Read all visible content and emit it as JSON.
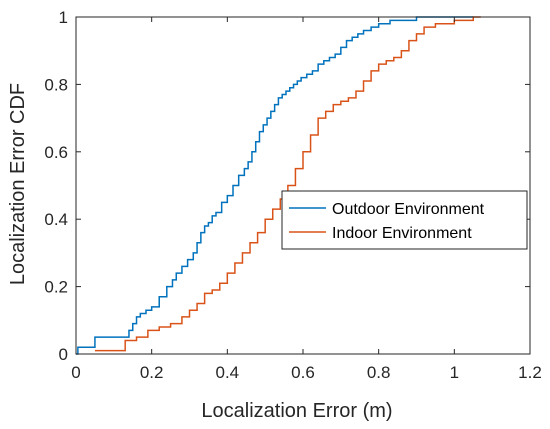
{
  "chart_data": {
    "type": "line",
    "step": true,
    "title": "",
    "xlabel": "Localization Error (m)",
    "ylabel": "Localization Error CDF",
    "xlim": [
      0,
      1.2
    ],
    "ylim": [
      0,
      1
    ],
    "x_ticks": [
      0,
      0.2,
      0.4,
      0.6,
      0.8,
      1,
      1.2
    ],
    "x_tick_labels": [
      "0",
      "0.2",
      "0.4",
      "0.6",
      "0.8",
      "1",
      "1.2"
    ],
    "y_ticks": [
      0,
      0.2,
      0.4,
      0.6,
      0.8,
      1
    ],
    "y_tick_labels": [
      "0",
      "0.2",
      "0.4",
      "0.6",
      "0.8",
      "1"
    ],
    "grid": false,
    "legend_position": "center-right",
    "series": [
      {
        "name": "Outdoor Environment",
        "color": "#0072BD",
        "x": [
          0,
          0.005,
          0.05,
          0.14,
          0.15,
          0.16,
          0.17,
          0.185,
          0.2,
          0.22,
          0.24,
          0.255,
          0.265,
          0.28,
          0.295,
          0.31,
          0.32,
          0.33,
          0.34,
          0.35,
          0.36,
          0.37,
          0.385,
          0.4,
          0.415,
          0.43,
          0.445,
          0.455,
          0.465,
          0.475,
          0.485,
          0.495,
          0.505,
          0.515,
          0.525,
          0.535,
          0.545,
          0.555,
          0.565,
          0.575,
          0.585,
          0.595,
          0.61,
          0.625,
          0.64,
          0.655,
          0.67,
          0.685,
          0.7,
          0.715,
          0.73,
          0.745,
          0.76,
          0.78,
          0.8,
          0.83,
          0.86,
          0.9,
          0.95,
          1.0,
          1.05
        ],
        "y": [
          0,
          0.02,
          0.05,
          0.07,
          0.09,
          0.11,
          0.12,
          0.13,
          0.14,
          0.17,
          0.2,
          0.22,
          0.24,
          0.26,
          0.28,
          0.3,
          0.33,
          0.36,
          0.38,
          0.39,
          0.41,
          0.42,
          0.45,
          0.47,
          0.5,
          0.53,
          0.55,
          0.57,
          0.6,
          0.63,
          0.66,
          0.68,
          0.7,
          0.72,
          0.74,
          0.76,
          0.77,
          0.78,
          0.79,
          0.8,
          0.81,
          0.82,
          0.83,
          0.84,
          0.86,
          0.87,
          0.88,
          0.89,
          0.91,
          0.93,
          0.94,
          0.95,
          0.96,
          0.97,
          0.98,
          0.99,
          0.99,
          1.0,
          1.0,
          1.0,
          1.0
        ]
      },
      {
        "name": "Indoor Environment",
        "color": "#D95319",
        "x": [
          0.05,
          0.13,
          0.16,
          0.19,
          0.22,
          0.25,
          0.28,
          0.3,
          0.32,
          0.34,
          0.36,
          0.38,
          0.4,
          0.42,
          0.44,
          0.46,
          0.48,
          0.5,
          0.52,
          0.54,
          0.56,
          0.58,
          0.6,
          0.62,
          0.64,
          0.66,
          0.68,
          0.7,
          0.72,
          0.74,
          0.76,
          0.78,
          0.8,
          0.82,
          0.84,
          0.86,
          0.88,
          0.9,
          0.92,
          0.95,
          1.0,
          1.05,
          1.07
        ],
        "y": [
          0.01,
          0.04,
          0.05,
          0.07,
          0.08,
          0.09,
          0.11,
          0.13,
          0.15,
          0.18,
          0.19,
          0.21,
          0.24,
          0.27,
          0.3,
          0.33,
          0.36,
          0.4,
          0.43,
          0.46,
          0.5,
          0.55,
          0.6,
          0.65,
          0.7,
          0.72,
          0.74,
          0.75,
          0.76,
          0.78,
          0.81,
          0.84,
          0.86,
          0.87,
          0.88,
          0.9,
          0.93,
          0.95,
          0.97,
          0.98,
          0.99,
          1.0,
          1.0
        ]
      }
    ]
  }
}
